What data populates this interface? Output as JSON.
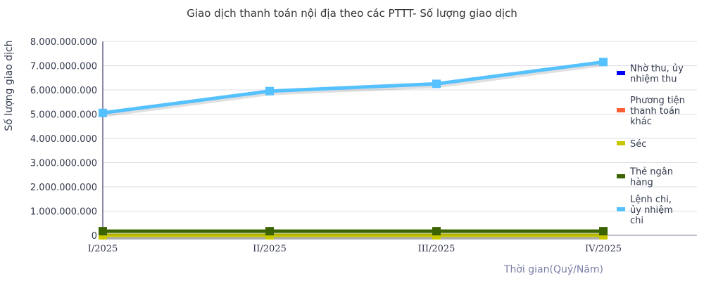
{
  "chart_data": {
    "type": "line",
    "title": "Giao dịch thanh toán nội địa theo các PTTT- Số lượng giao dịch",
    "xlabel": "Thời gian(Quý/Năm)",
    "ylabel": "Số lượng giao dịch",
    "categories": [
      "I/2025",
      "II/2025",
      "III/2025",
      "IV/2025"
    ],
    "ylim": [
      0,
      8000000000
    ],
    "yticks": [
      "0",
      "1.000.000.000",
      "2.000.000.000",
      "3.000.000.000",
      "4.000.000.000",
      "5.000.000.000",
      "6.000.000.000",
      "7.000.000.000",
      "8.000.000.000"
    ],
    "grid": true,
    "legend_position": "right",
    "series": [
      {
        "name": "Nhờ thu, ủy nhiệm thu",
        "color": "#0000ff",
        "values": [
          0,
          0,
          0,
          0
        ]
      },
      {
        "name": "Phương tiện thanh toán khác",
        "color": "#ff5e33",
        "values": [
          0,
          0,
          0,
          0
        ]
      },
      {
        "name": "Séc",
        "color": "#c8c800",
        "values": [
          0,
          0,
          0,
          0
        ]
      },
      {
        "name": "Thẻ ngân hàng",
        "color": "#3b6400",
        "values": [
          170000000,
          170000000,
          170000000,
          170000000
        ]
      },
      {
        "name": "Lệnh chi, ủy nhiệm chi",
        "color": "#55c1ff",
        "values": [
          5050000000,
          5950000000,
          6250000000,
          7150000000
        ]
      }
    ]
  }
}
